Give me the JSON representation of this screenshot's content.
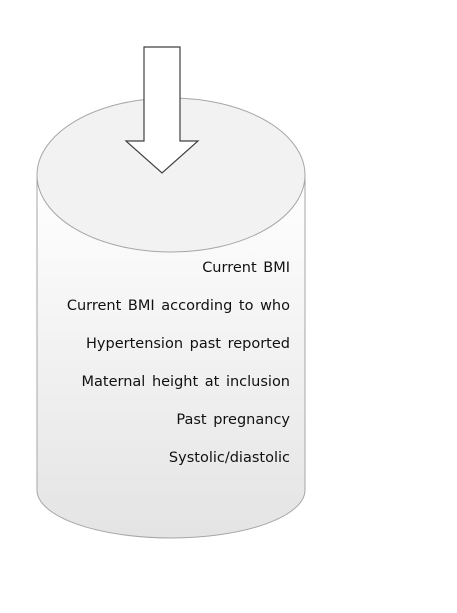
{
  "diagram": {
    "items": [
      "Current BMI",
      "Current BMI according to who",
      "Hypertension past reported",
      "Maternal height at inclusion",
      "Past pregnancy",
      "Systolic/diastolic"
    ]
  }
}
